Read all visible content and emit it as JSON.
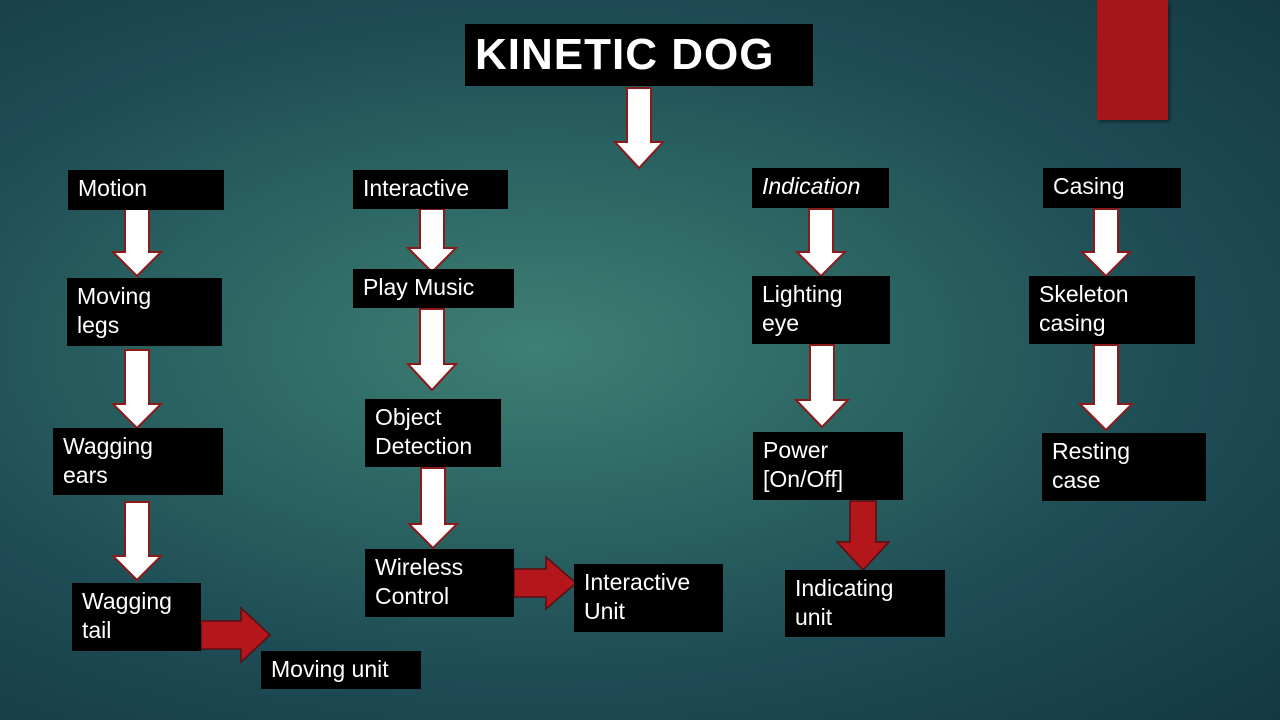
{
  "title": "KINETIC DOG",
  "colors": {
    "accent": "#a5161b",
    "box_background": "#000000",
    "box_text": "#ffffff",
    "arrow_white": "#ffffff",
    "arrow_red": "#b3161b",
    "background": "#2d6764"
  },
  "columns": {
    "motion": {
      "header": "Motion",
      "steps": [
        "Moving\nlegs",
        "Wagging\nears",
        "Wagging\n tail"
      ],
      "unit": "Moving unit"
    },
    "interactive": {
      "header": "Interactive",
      "steps": [
        "Play Music",
        "Object\nDetection",
        "Wireless\nControl"
      ],
      "unit": "Interactive\nUnit"
    },
    "indication": {
      "header": "Indication",
      "steps": [
        "Lighting\neye",
        "Power\n[On/Off]"
      ],
      "unit": "Indicating\nunit"
    },
    "casing": {
      "header": "Casing",
      "steps": [
        "Skeleton\ncasing",
        "Resting\ncase"
      ]
    }
  }
}
